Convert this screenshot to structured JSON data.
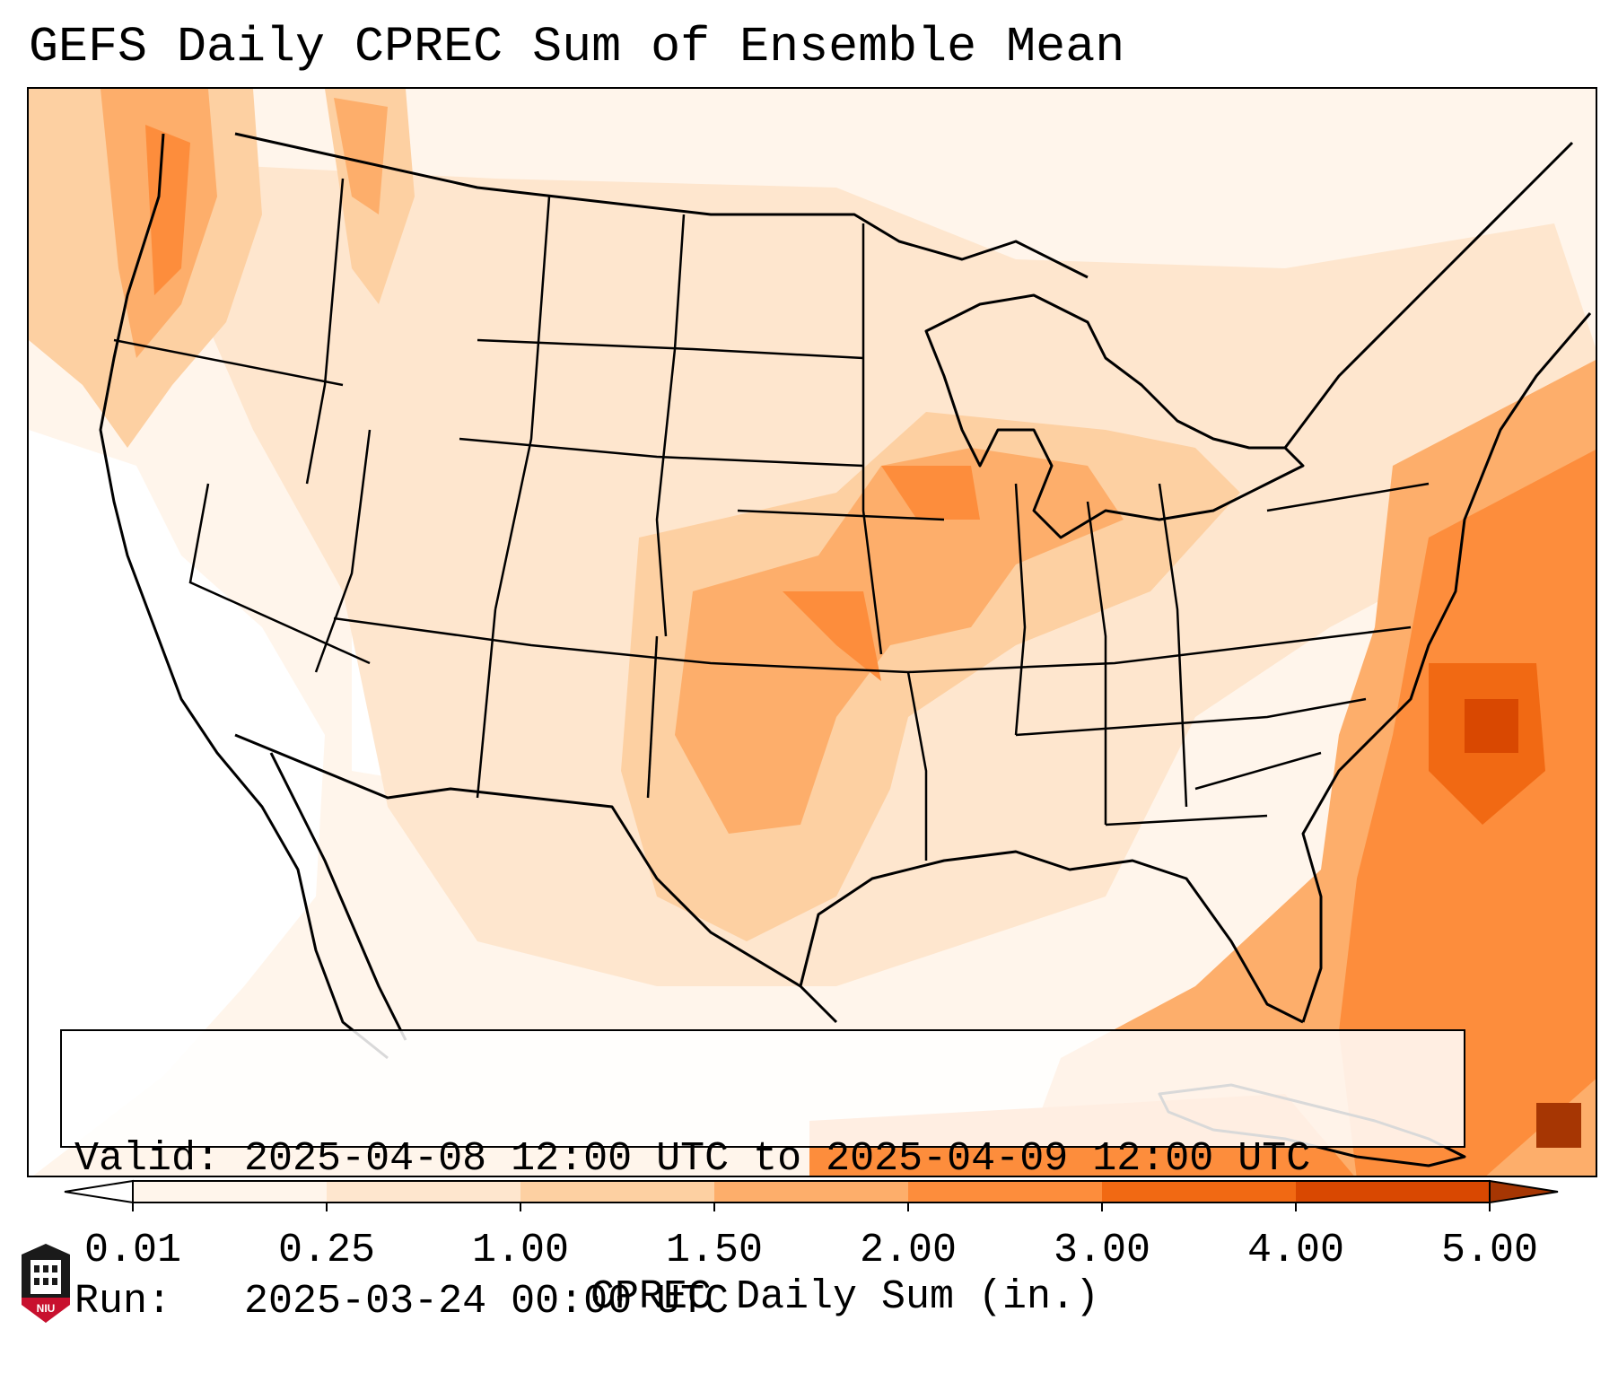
{
  "title": "GEFS Daily CPREC Sum of Ensemble Mean",
  "info": {
    "valid_label": "Valid:",
    "valid_value": "2025-04-08 12:00 UTC to 2025-04-09 12:00 UTC",
    "run_label": "Run:",
    "run_value": "2025-03-24 00:00 UTC"
  },
  "colorbar": {
    "label": "CPREC Daily Sum (in.)",
    "ticks": [
      "0.01",
      "0.25",
      "1.00",
      "1.50",
      "2.00",
      "3.00",
      "4.00",
      "5.00"
    ],
    "colors": [
      "#fff5eb",
      "#fee6ce",
      "#fdd0a2",
      "#fdae6b",
      "#fd8d3c",
      "#f16913",
      "#d94801",
      "#a63603"
    ],
    "under_color": "#ffffff",
    "over_color": "#7f2704"
  },
  "map": {
    "projection": "Lambert Conformal",
    "region": "CONUS",
    "features": [
      "coastlines",
      "country-borders",
      "state-borders",
      "great-lakes"
    ],
    "precip_zones": [
      {
        "name": "Pacific Northwest",
        "level": "1.00–2.00"
      },
      {
        "name": "Southern Plains and Mississippi Valley",
        "level": "1.00–2.00"
      },
      {
        "name": "Western Atlantic offshore",
        "level": "2.00–4.00"
      },
      {
        "name": "Caribbean",
        "level": "3.00–5.00"
      }
    ]
  },
  "logo": {
    "text": "NIU",
    "name": "Northern Illinois University"
  }
}
